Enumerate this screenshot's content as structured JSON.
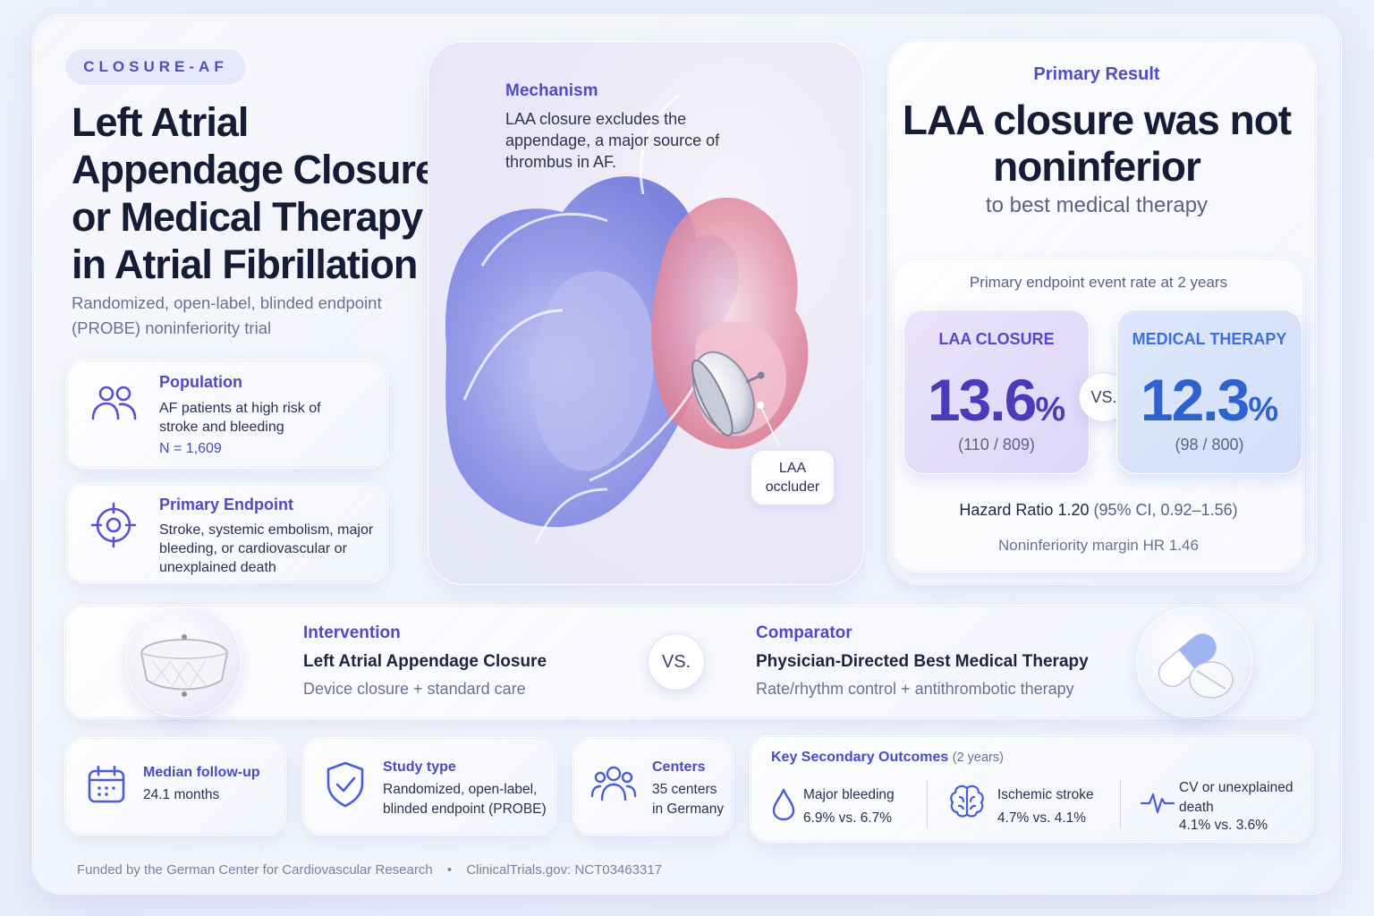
{
  "tag": "CLOSURE-AF",
  "title": "Left Atrial Appendage Closure or Medical Therapy in Atrial Fibrillation",
  "subtitle": "Randomized, open-label, blinded endpoint (PROBE) noninferiority trial",
  "population": {
    "heading": "Population",
    "text": "AF patients at high risk of stroke and bleeding",
    "n": "N = 1,609",
    "icon": "people-icon"
  },
  "endpoint": {
    "heading": "Primary Endpoint",
    "text": "Stroke, systemic embolism, major bleeding, or cardiovascular or unexplained death",
    "icon": "target-icon"
  },
  "mechanism": {
    "heading": "Mechanism",
    "text": "LAA closure excludes the appendage, a major source of thrombus in AF.",
    "occluder_label": "LAA occluder"
  },
  "result": {
    "eyebrow": "Primary Result",
    "headline": "LAA closure was not noninferior",
    "sub": "to best medical therapy",
    "endpoint_label": "Primary endpoint event rate at 2 years",
    "laa": {
      "name": "LAA CLOSURE",
      "value": "13.6",
      "unit": "%",
      "fraction": "(110 / 809)"
    },
    "med": {
      "name": "MEDICAL THERAPY",
      "value": "12.3",
      "unit": "%",
      "fraction": "(98 / 800)"
    },
    "vs": "VS.",
    "hazard_main": "Hazard Ratio 1.20",
    "hazard_ci": "(95% CI, 0.92–1.56)",
    "margin": "Noninferiority margin HR 1.46"
  },
  "intervention": {
    "heading": "Intervention",
    "title": "Left Atrial Appendage Closure",
    "text": "Device closure + standard care"
  },
  "comparator": {
    "heading": "Comparator",
    "title": "Physician-Directed Best Medical Therapy",
    "text": "Rate/rhythm control + antithrombotic therapy"
  },
  "band_vs": "VS.",
  "followup": {
    "heading": "Median follow-up",
    "text": "24.1 months",
    "icon": "calendar-icon"
  },
  "study_type": {
    "heading": "Study type",
    "text": "Randomized, open-label, blinded endpoint (PROBE)",
    "icon": "shield-check-icon"
  },
  "centers": {
    "heading": "Centers",
    "text": "35 centers in Germany",
    "icon": "people-group-icon"
  },
  "secondary": {
    "heading": "Key Secondary Outcomes",
    "period": "(2 years)",
    "items": [
      {
        "label": "Major bleeding",
        "value": "6.9% vs. 6.7%",
        "icon": "droplet-icon"
      },
      {
        "label": "Ischemic stroke",
        "value": "4.7% vs. 4.1%",
        "icon": "brain-icon"
      },
      {
        "label": "CV or unexplained death",
        "value": "4.1% vs. 3.6%",
        "icon": "heartbeat-icon"
      }
    ]
  },
  "footer": {
    "funding": "Funded by the German Center for Cardiovascular Research",
    "separator": "•",
    "registry": "ClinicalTrials.gov: NCT03463317"
  },
  "colors": {
    "accent": "#5446c9",
    "laa": "#4a3bb8",
    "med": "#2e62cf"
  }
}
